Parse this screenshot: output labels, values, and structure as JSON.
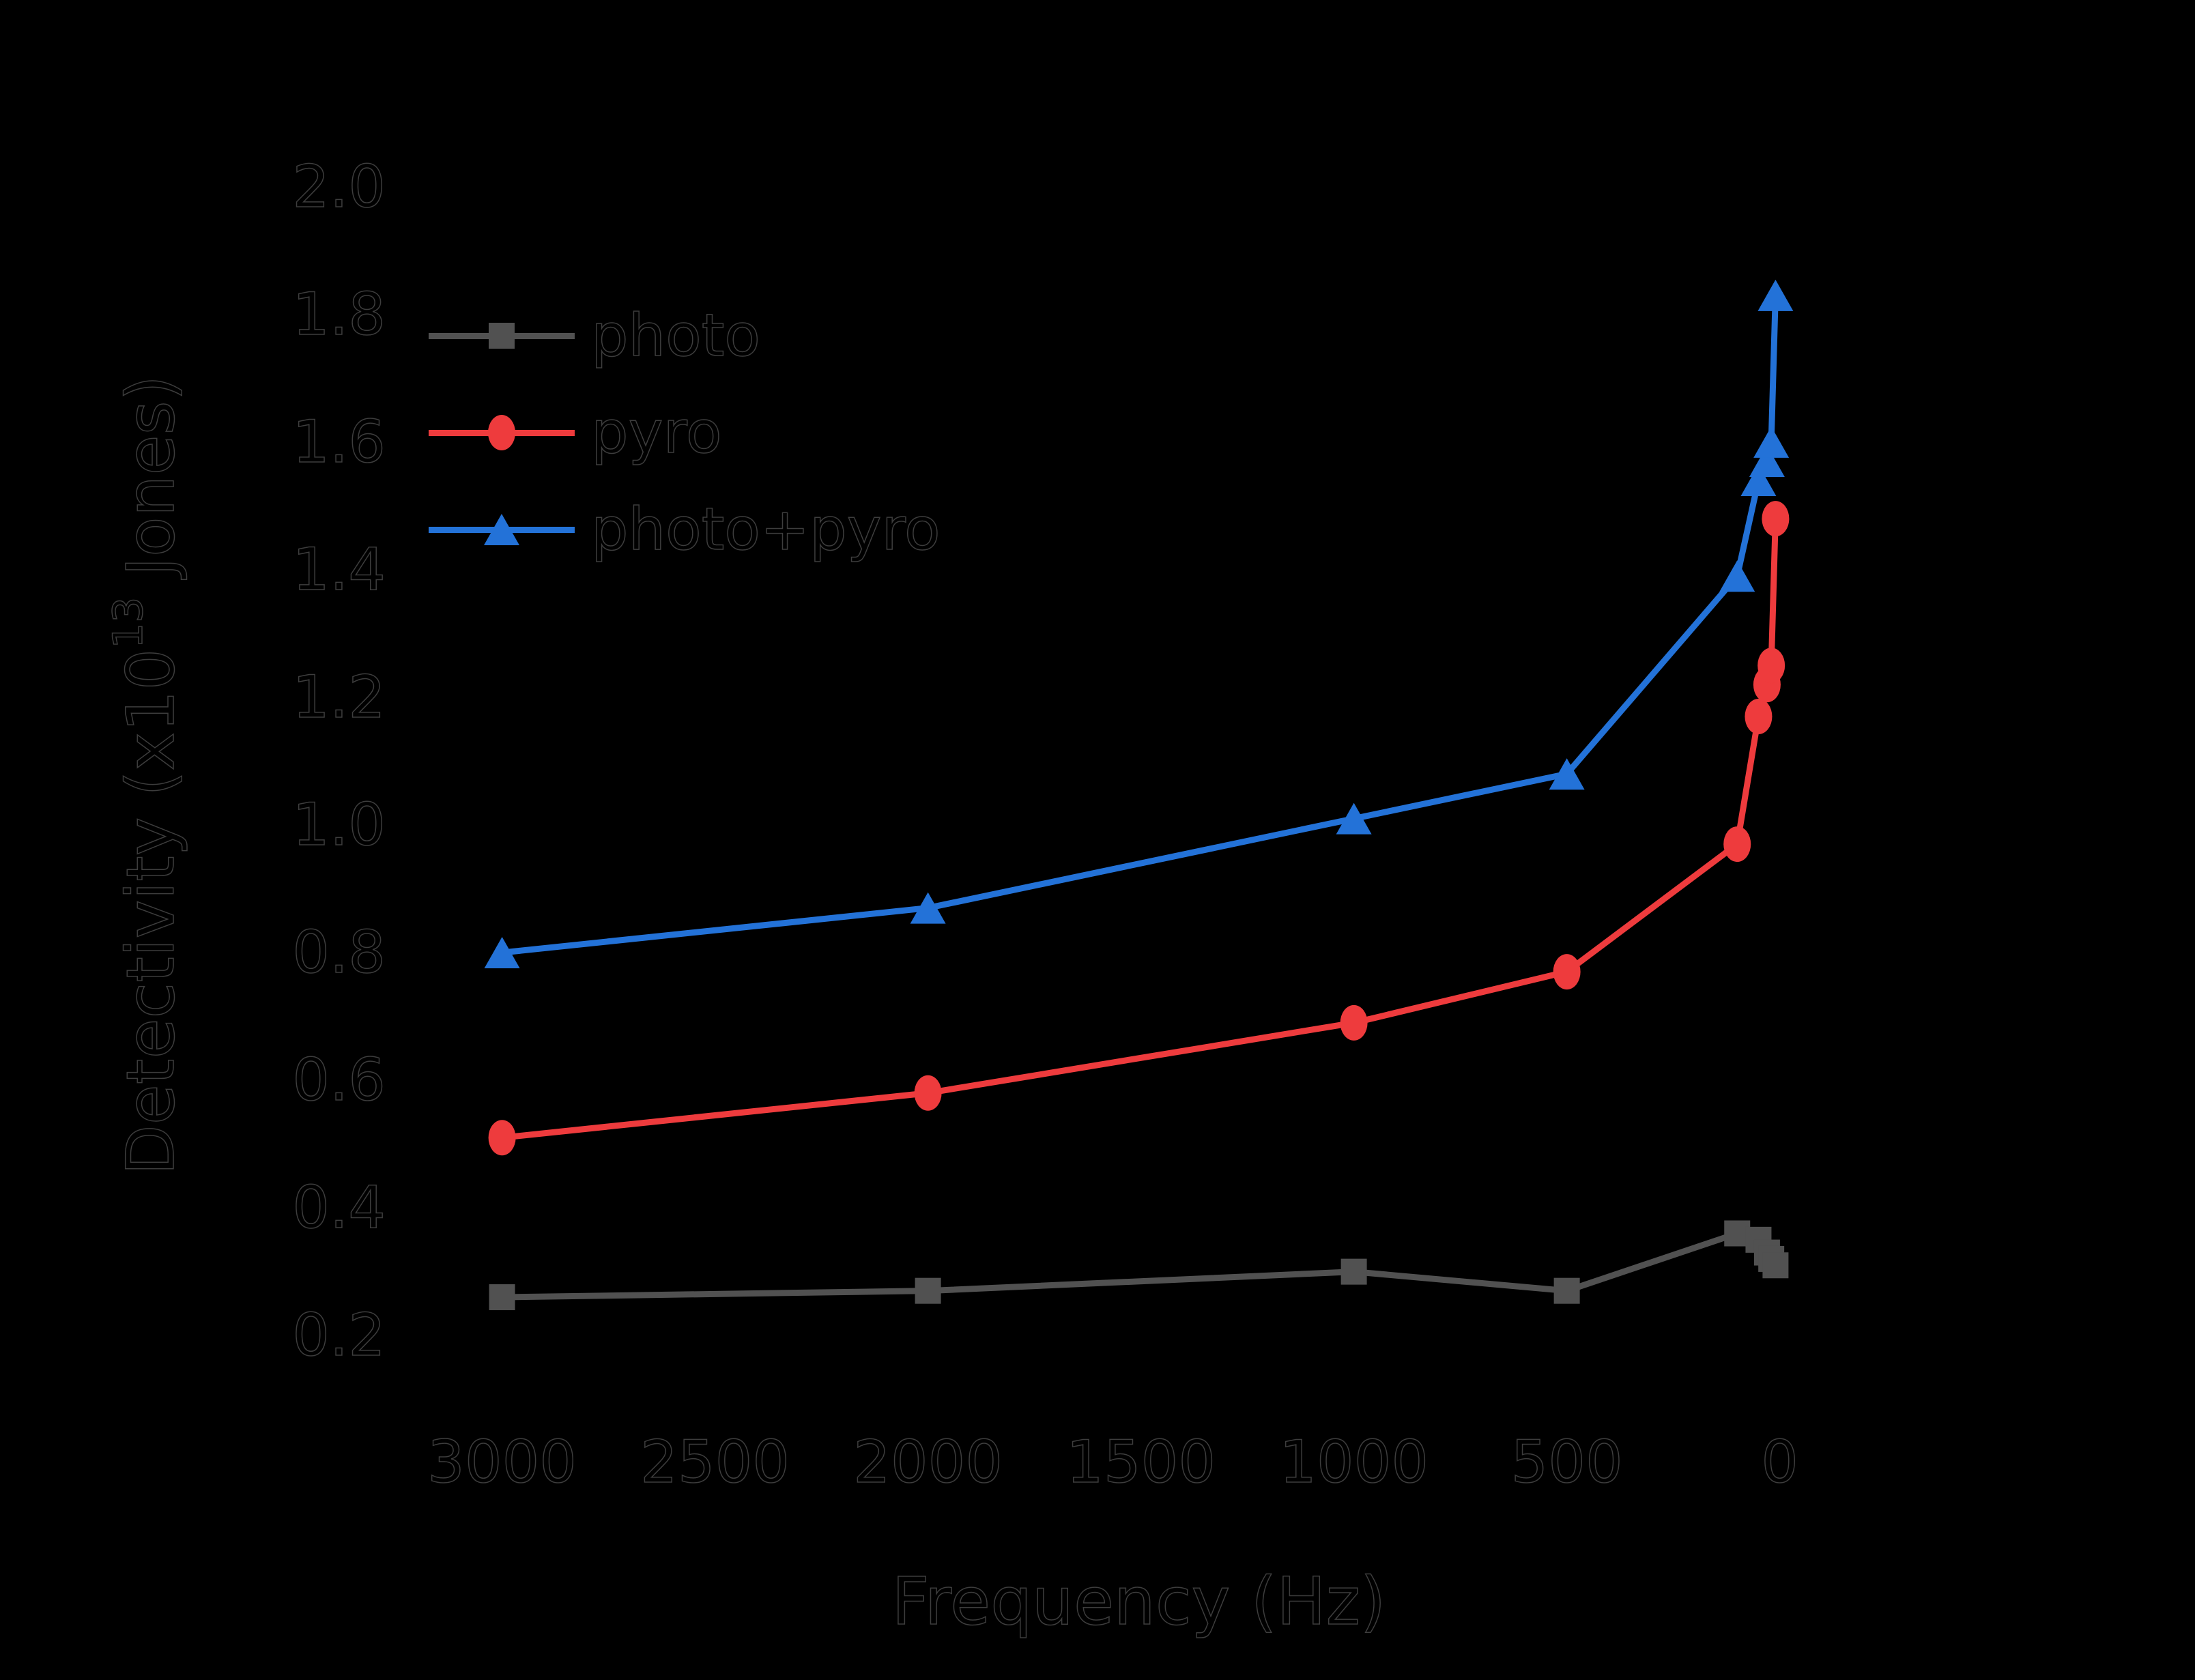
{
  "figure": {
    "background": "#000000",
    "text_color": "#000000",
    "text_outline_color": "#3d3d3d"
  },
  "chart_data": {
    "type": "line",
    "title": "",
    "xlabel": "Frequency (Hz)",
    "ylabel": "Detectivity (x10^13 Jones)",
    "ylabel_parts": [
      "Detectivity (x10",
      "13",
      " Jones)"
    ],
    "x_axis": {
      "reversed": true,
      "min": 3150,
      "max": -140,
      "tick_values": [
        3000,
        2500,
        2000,
        1500,
        1000,
        500,
        0
      ],
      "tick_labels": [
        "3000",
        "2500",
        "2000",
        "1500",
        "1000",
        "500",
        "0"
      ]
    },
    "y_axis": {
      "min": 0.09,
      "max": 2.11,
      "tick_values": [
        0.2,
        0.4,
        0.6,
        0.8,
        1.0,
        1.2,
        1.4,
        1.6,
        1.8,
        2.0
      ],
      "tick_labels": [
        "0.2",
        "0.4",
        "0.6",
        "0.8",
        "1.0",
        "1.2",
        "1.4",
        "1.6",
        "1.8",
        "2.0"
      ]
    },
    "grid": false,
    "x": [
      3000,
      2000,
      1000,
      500,
      100,
      50,
      30,
      20,
      10
    ],
    "series": [
      {
        "name": "photo",
        "color": "#515151",
        "marker": "square",
        "values": [
          0.26,
          0.27,
          0.3,
          0.27,
          0.36,
          0.35,
          0.33,
          0.32,
          0.31
        ]
      },
      {
        "name": "pyro",
        "color": "#ee3b3d",
        "marker": "circle",
        "values": [
          0.51,
          0.58,
          0.69,
          0.77,
          0.97,
          1.17,
          1.22,
          1.25,
          1.48
        ]
      },
      {
        "name": "photo+pyro",
        "color": "#2372d8",
        "marker": "triangle-up",
        "values": [
          0.8,
          0.87,
          1.01,
          1.08,
          1.39,
          1.54,
          1.57,
          1.6,
          1.83
        ]
      }
    ],
    "legend": {
      "position": "upper-left",
      "entries": [
        "photo",
        "pyro",
        "photo+pyro"
      ]
    }
  }
}
